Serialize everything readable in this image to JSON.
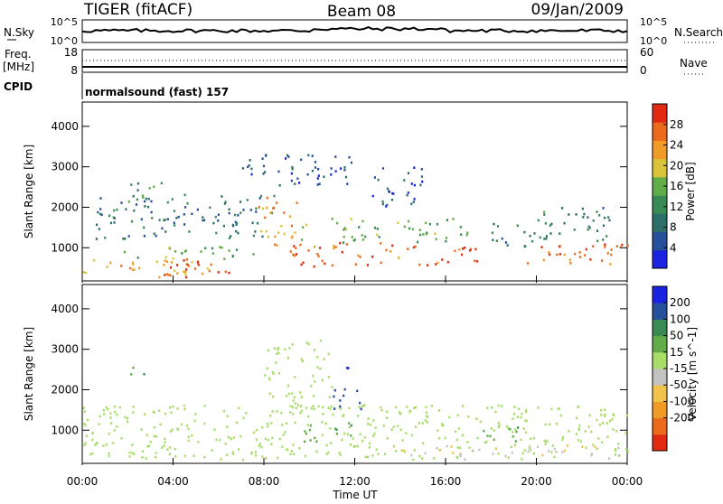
{
  "header": {
    "radar": "TIGER (fitACF)",
    "beam": "Beam 08",
    "date": "09/Jan/2009"
  },
  "top_panel": {
    "left_label_1": "N.Sky",
    "left_ticks_1": [
      "10^5",
      "10^0"
    ],
    "right_label_1": "N.Search",
    "right_ticks_1": [
      "10^5",
      "10^0"
    ],
    "left_label_2": "Freq.",
    "left_unit_2": "[MHz]",
    "left_ticks_2": [
      "18",
      "8"
    ],
    "right_label_2": "Nave",
    "right_ticks_2": [
      "60",
      "0"
    ],
    "cpid_label": "CPID",
    "cpid_text": "normalsound (fast) 157"
  },
  "chart_data": [
    {
      "type": "heatmap",
      "title": "",
      "xlabel": "Time UT",
      "ylabel": "Slant Range [km]",
      "x_ticks": [
        "00:00",
        "04:00",
        "08:00",
        "12:00",
        "16:00",
        "20:00",
        "00:00"
      ],
      "x_range_hours": [
        0,
        24
      ],
      "y_ticks": [
        1000,
        2000,
        3000,
        4000
      ],
      "ylim": [
        180,
        4600
      ],
      "colorbar": {
        "label": "Power [dB]",
        "ticks": [
          "4",
          "8",
          "12",
          "16",
          "20",
          "24",
          "28"
        ],
        "range": [
          0,
          32
        ],
        "colors": [
          "#1a24e0",
          "#27509b",
          "#2c6f6a",
          "#3a8a55",
          "#62ad4a",
          "#d9c338",
          "#ef9c26",
          "#ec6a1c",
          "#e02a12"
        ]
      },
      "echo_regions": [
        {
          "t0": 0.0,
          "t1": 5.5,
          "r0": 250,
          "r1": 700,
          "level": 22
        },
        {
          "t0": 3.5,
          "t1": 6.5,
          "r0": 250,
          "r1": 700,
          "level": 29
        },
        {
          "t0": 1.0,
          "t1": 8.0,
          "r0": 700,
          "r1": 1000,
          "level": 15
        },
        {
          "t0": 0.5,
          "t1": 8.5,
          "r0": 1200,
          "r1": 2300,
          "level": 9
        },
        {
          "t0": 7.5,
          "t1": 9.5,
          "r0": 1000,
          "r1": 2300,
          "level": 24
        },
        {
          "t0": 2.0,
          "t1": 3.5,
          "r0": 2100,
          "r1": 2600,
          "level": 13
        },
        {
          "t0": 7.0,
          "t1": 12.0,
          "r0": 2500,
          "r1": 3300,
          "level": 6
        },
        {
          "t0": 9.0,
          "t1": 17.5,
          "r0": 500,
          "r1": 1100,
          "level": 28
        },
        {
          "t0": 9.5,
          "t1": 17.0,
          "r0": 1100,
          "r1": 1700,
          "level": 15
        },
        {
          "t0": 12.5,
          "t1": 15.0,
          "r0": 2000,
          "r1": 3000,
          "level": 6
        },
        {
          "t0": 18.0,
          "t1": 20.0,
          "r0": 1000,
          "r1": 1600,
          "level": 10
        },
        {
          "t0": 19.5,
          "t1": 24.0,
          "r0": 550,
          "r1": 1100,
          "level": 27
        },
        {
          "t0": 20.0,
          "t1": 23.5,
          "r0": 1100,
          "r1": 2000,
          "level": 11
        }
      ]
    },
    {
      "type": "heatmap",
      "title": "",
      "xlabel": "Time UT",
      "ylabel": "Slant Range [km]",
      "x_ticks": [
        "00:00",
        "04:00",
        "08:00",
        "12:00",
        "16:00",
        "20:00",
        "00:00"
      ],
      "x_range_hours": [
        0,
        24
      ],
      "y_ticks": [
        1000,
        2000,
        3000,
        4000
      ],
      "ylim": [
        180,
        4600
      ],
      "colorbar": {
        "label": "Velocity [m s^-1]",
        "ticks": [
          "200",
          "100",
          "50",
          "15",
          "-15",
          "-50",
          "-100",
          "-200"
        ],
        "colors": [
          "#1a24e0",
          "#27509b",
          "#3a8a55",
          "#62ad4a",
          "#a8dd6a",
          "#c4c2c0",
          "#f0c34a",
          "#ef9c26",
          "#ec6a1c",
          "#e02a12"
        ]
      },
      "echo_regions": [
        {
          "t0": 0.0,
          "t1": 24.0,
          "r0": 250,
          "r1": 1600,
          "level": 0
        },
        {
          "t0": 2.0,
          "t1": 3.5,
          "r0": 2200,
          "r1": 2600,
          "level": 40
        },
        {
          "t0": 9.5,
          "t1": 12.0,
          "r0": 700,
          "r1": 1200,
          "level": 40
        },
        {
          "t0": 11.0,
          "t1": 12.5,
          "r0": 1500,
          "r1": 2000,
          "level": 150
        },
        {
          "t0": 17.5,
          "t1": 19.5,
          "r0": 700,
          "r1": 1100,
          "level": 40
        },
        {
          "t0": 14.0,
          "t1": 24.0,
          "r0": 250,
          "r1": 600,
          "level": -40
        },
        {
          "t0": 8.0,
          "t1": 11.0,
          "r0": 1500,
          "r1": 3200,
          "level": 0
        },
        {
          "t0": 11.5,
          "t1": 12.0,
          "r0": 2300,
          "r1": 2700,
          "level": 200
        }
      ]
    }
  ]
}
